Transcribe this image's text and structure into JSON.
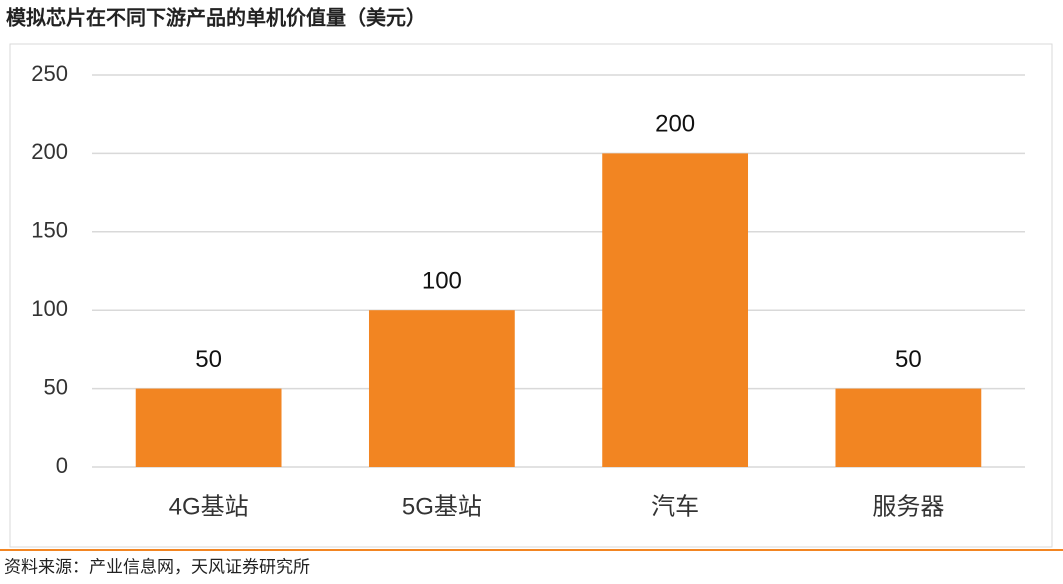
{
  "chart_data": {
    "type": "bar",
    "title": "模拟芯片在不同下游产品的单机价值量（美元）",
    "categories": [
      "4G基站",
      "5G基站",
      "汽车",
      "服务器"
    ],
    "values": [
      50,
      100,
      200,
      50
    ],
    "color": "#f28522",
    "ylim": [
      0,
      250
    ],
    "yticks": [
      0,
      50,
      100,
      150,
      200,
      250
    ],
    "grid": true,
    "source": "资料来源：产业信息网，天风证券研究所"
  }
}
